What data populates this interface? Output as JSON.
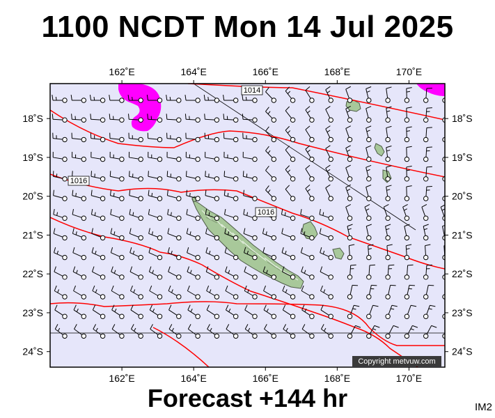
{
  "title": "1100 NCDT Mon 14 Jul 2025",
  "subtitle": "Forecast +144 hr",
  "corner_tag": "IM2",
  "copyright": "Copyright metvuw.com",
  "map": {
    "lon_range": [
      160,
      171
    ],
    "lat_range": [
      -24.4,
      -17.1
    ],
    "lon_ticks": [
      "162˚E",
      "164˚E",
      "166˚E",
      "168˚E",
      "170˚E"
    ],
    "lon_tick_values": [
      162,
      164,
      166,
      168,
      170
    ],
    "lat_ticks": [
      "18˚S",
      "19˚S",
      "20˚S",
      "21˚S",
      "22˚S",
      "23˚S",
      "24˚S"
    ],
    "lat_tick_values": [
      -18,
      -19,
      -20,
      -21,
      -22,
      -23,
      -24
    ],
    "colors": {
      "sea": "#e6e6fa",
      "isobar": "#ff0000",
      "precip": "#ff00ff",
      "land": "#a8c89a",
      "border": "#000000"
    },
    "isobar_labels": [
      "1014",
      "1016",
      "1016"
    ]
  }
}
